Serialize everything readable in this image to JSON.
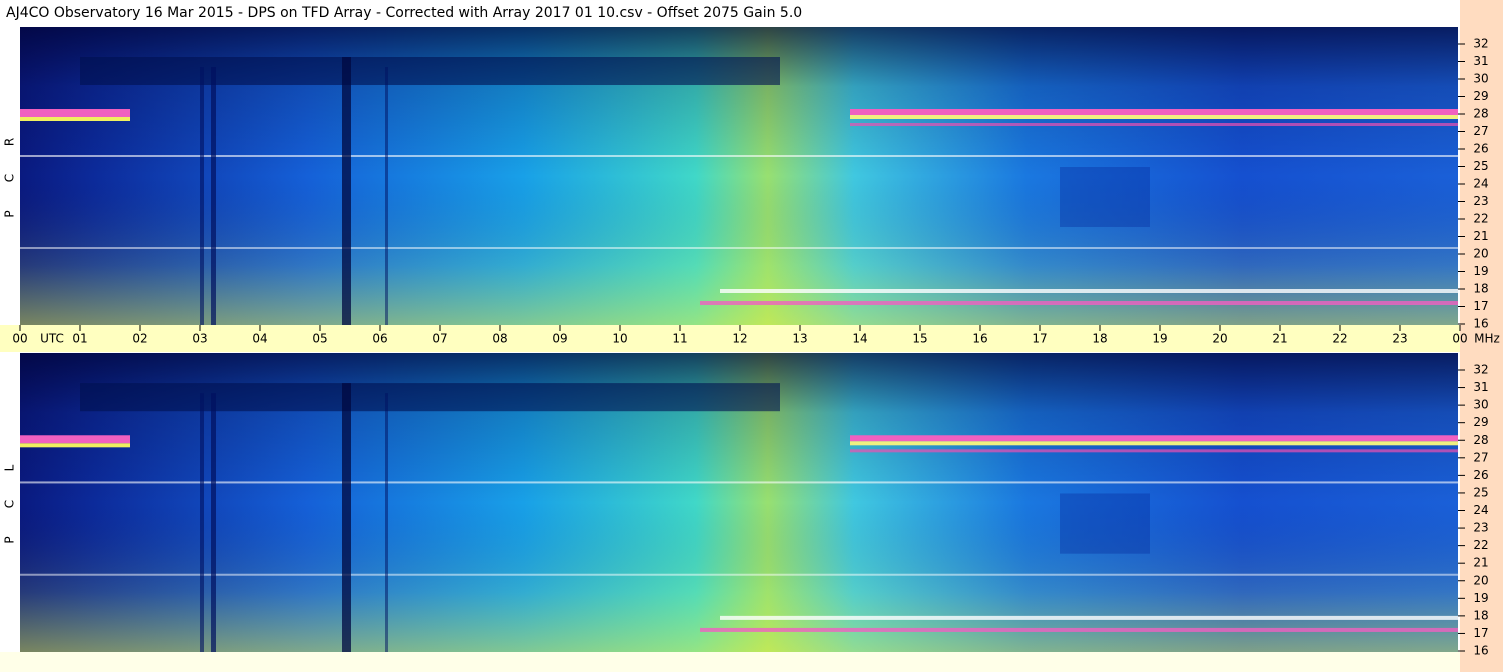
{
  "header": {
    "title": "AJ4CO Observatory  16 Mar 2015  -  DPS on TFD Array  -  Corrected with Array 2017 01 10.csv  -  Offset 2075  Gain 5.0"
  },
  "panels": [
    {
      "label": [
        "R",
        "C",
        "P"
      ]
    },
    {
      "label": [
        "L",
        "C",
        "P"
      ]
    }
  ],
  "x_axis": {
    "hours": [
      "00",
      "01",
      "02",
      "03",
      "04",
      "05",
      "06",
      "07",
      "08",
      "09",
      "10",
      "11",
      "12",
      "13",
      "14",
      "15",
      "16",
      "17",
      "18",
      "19",
      "20",
      "21",
      "22",
      "23",
      "00"
    ],
    "timezone": "UTC",
    "unit": "MHz"
  },
  "y_axis": {
    "labels": [
      32,
      31,
      30,
      29,
      28,
      27,
      26,
      25,
      24,
      23,
      22,
      21,
      20,
      19,
      18,
      17,
      16
    ]
  }
}
